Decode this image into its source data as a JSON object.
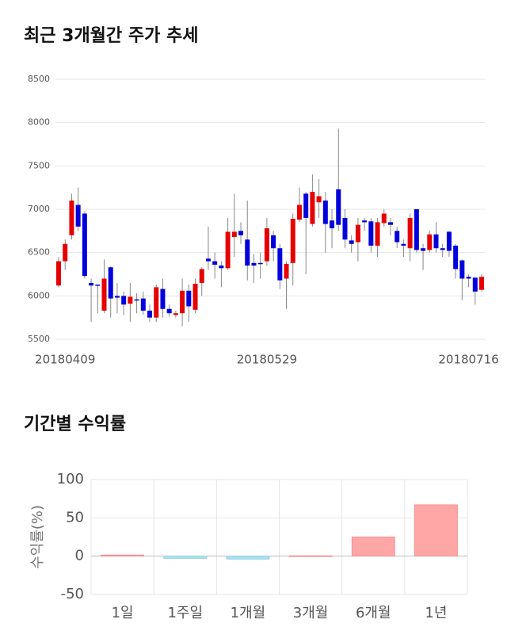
{
  "chart_data": [
    {
      "type": "candlestick",
      "title": "최근 3개월간 주가 추세",
      "categories": [
        null,
        "20180409",
        null,
        null,
        null,
        null,
        null,
        null,
        null,
        null,
        null,
        null,
        null,
        null,
        null,
        null,
        null,
        null,
        null,
        null,
        null,
        null,
        null,
        null,
        null,
        null,
        null,
        null,
        null,
        null,
        null,
        null,
        "20180529",
        null,
        null,
        null,
        null,
        null,
        null,
        null,
        null,
        null,
        null,
        null,
        null,
        null,
        null,
        null,
        null,
        null,
        null,
        null,
        null,
        null,
        null,
        null,
        null,
        null,
        null,
        null,
        null,
        null,
        null,
        "20180716",
        null,
        null
      ],
      "open": [
        6120,
        6400,
        6700,
        7050,
        6950,
        6150,
        6130,
        5830,
        6330,
        6000,
        6000,
        5910,
        5960,
        5970,
        5830,
        5750,
        6080,
        5850,
        5780,
        5800,
        6060,
        5840,
        6150,
        6430,
        6400,
        6350,
        6320,
        6680,
        6750,
        6650,
        6380,
        6380,
        6400,
        6700,
        6550,
        6200,
        6380,
        6880,
        7180,
        6830,
        7080,
        7100,
        6870,
        7230,
        6900,
        6640,
        6620,
        6870,
        6860,
        6580,
        6840,
        6850,
        6750,
        6600,
        6550,
        7000,
        6550,
        6530,
        6710,
        6550,
        6740,
        6580,
        6410,
        6220,
        6210,
        6070
      ],
      "close": [
        6400,
        6600,
        7100,
        6800,
        6230,
        6120,
        6120,
        6200,
        5970,
        5980,
        5900,
        5990,
        5950,
        5830,
        5750,
        6100,
        5850,
        5800,
        5800,
        6060,
        5880,
        6140,
        6310,
        6400,
        6360,
        6320,
        6740,
        6740,
        6700,
        6350,
        6350,
        6370,
        6780,
        6550,
        6180,
        6370,
        6890,
        7050,
        6900,
        7200,
        7150,
        6830,
        6780,
        6820,
        6650,
        6600,
        6820,
        6850,
        6580,
        6850,
        6950,
        6820,
        6620,
        6580,
        6900,
        6530,
        6520,
        6710,
        6550,
        6530,
        6520,
        6310,
        6200,
        6200,
        6050,
        6220
      ],
      "high": [
        6450,
        6650,
        7180,
        7250,
        6980,
        6200,
        6130,
        6420,
        6340,
        6150,
        6050,
        6150,
        6030,
        6050,
        5900,
        6130,
        6200,
        5900,
        5830,
        6200,
        6130,
        6200,
        6330,
        6800,
        6500,
        6400,
        6900,
        7180,
        6850,
        7100,
        6480,
        6500,
        6900,
        6750,
        6600,
        6400,
        6950,
        7250,
        7200,
        7400,
        7350,
        7200,
        7000,
        7930,
        7000,
        6700,
        6900,
        6900,
        6900,
        6900,
        7000,
        6900,
        6800,
        6650,
        6950,
        7000,
        6600,
        6750,
        6850,
        6600,
        6750,
        6600,
        6420,
        6250,
        6220,
        6250
      ],
      "low": [
        6100,
        6300,
        6650,
        6750,
        6200,
        5700,
        5800,
        5800,
        5750,
        5800,
        5780,
        5700,
        5800,
        5780,
        5700,
        5700,
        5750,
        5760,
        5750,
        5650,
        5700,
        5800,
        6000,
        6300,
        6200,
        6100,
        6300,
        6450,
        6600,
        6180,
        6150,
        6200,
        6350,
        6400,
        6080,
        5850,
        6120,
        6850,
        6250,
        6800,
        6900,
        6500,
        6550,
        6750,
        6550,
        6500,
        6400,
        6750,
        6500,
        6450,
        6800,
        6700,
        6550,
        6450,
        6400,
        6500,
        6300,
        6500,
        6500,
        6450,
        6450,
        6200,
        5950,
        6100,
        5900,
        6050
      ],
      "up_color": "#e60000",
      "down_color": "#0000dc",
      "ylim": [
        5500,
        8500
      ],
      "yticks": [
        5500,
        6000,
        6500,
        7000,
        7500,
        8000,
        8500
      ],
      "grid": true
    },
    {
      "type": "bar",
      "title": "기간별 수익률",
      "y_label": "수익률(%)",
      "categories": [
        "1일",
        "1주일",
        "1개월",
        "3개월",
        "6개월",
        "1년"
      ],
      "values": [
        1.5,
        -3,
        -4,
        0.5,
        25,
        67
      ],
      "positive_color": "#ffa6a6",
      "negative_color": "#a8e2f0",
      "ylim": [
        -50,
        100
      ],
      "yticks": [
        -50,
        0,
        50,
        100
      ],
      "grid": true
    }
  ]
}
